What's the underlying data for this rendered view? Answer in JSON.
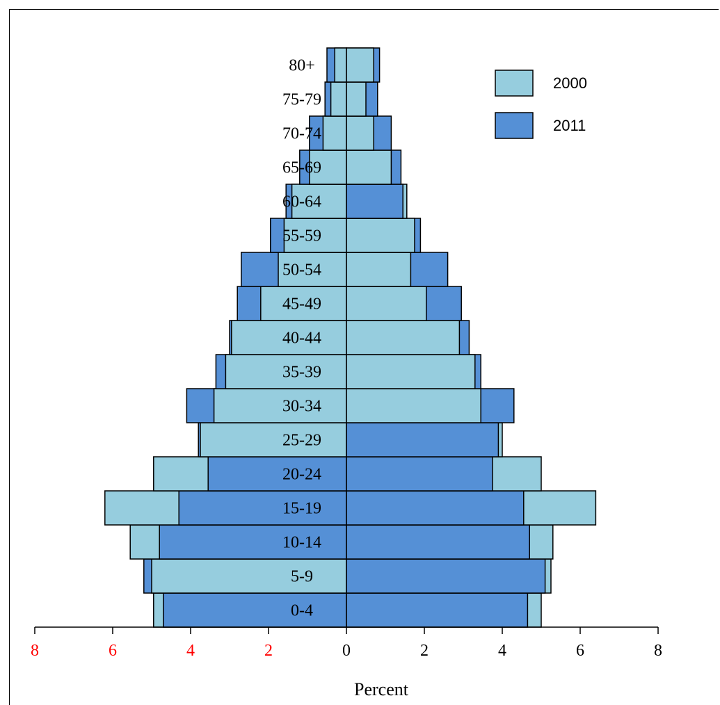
{
  "chart_data": {
    "type": "bar",
    "subtype": "population-pyramid",
    "categories": [
      "0-4",
      "5-9",
      "10-14",
      "15-19",
      "20-24",
      "25-29",
      "30-34",
      "35-39",
      "40-44",
      "45-49",
      "50-54",
      "55-59",
      "60-64",
      "65-69",
      "70-74",
      "75-79",
      "80+"
    ],
    "series": [
      {
        "name": "2000",
        "left": [
          4.95,
          5.0,
          5.55,
          6.2,
          4.95,
          3.75,
          3.4,
          3.1,
          2.95,
          2.2,
          1.75,
          1.6,
          1.4,
          0.95,
          0.6,
          0.4,
          0.3
        ],
        "right": [
          5.0,
          5.25,
          5.3,
          6.4,
          5.0,
          4.0,
          3.45,
          3.3,
          2.9,
          2.05,
          1.65,
          1.75,
          1.55,
          1.15,
          0.7,
          0.5,
          0.7
        ]
      },
      {
        "name": "2011",
        "left": [
          4.7,
          5.2,
          4.8,
          4.3,
          3.55,
          3.8,
          4.1,
          3.35,
          3.0,
          2.8,
          2.7,
          1.95,
          1.55,
          1.2,
          0.95,
          0.55,
          0.5
        ],
        "right": [
          4.65,
          5.1,
          4.7,
          4.55,
          3.75,
          3.9,
          4.3,
          3.45,
          3.15,
          2.95,
          2.6,
          1.9,
          1.45,
          1.4,
          1.15,
          0.8,
          0.85
        ]
      }
    ],
    "xlabel": "Percent",
    "xlim": [
      -8,
      8
    ],
    "xticks": [
      8,
      6,
      4,
      2,
      0,
      2,
      4,
      6,
      8
    ],
    "legend_position": "top-right",
    "colors": {
      "2000": "#96CDDE",
      "2011": "#5590D6",
      "left_tick_labels": "#FF0000",
      "right_tick_labels": "#000000",
      "bar_border": "#000000"
    }
  }
}
